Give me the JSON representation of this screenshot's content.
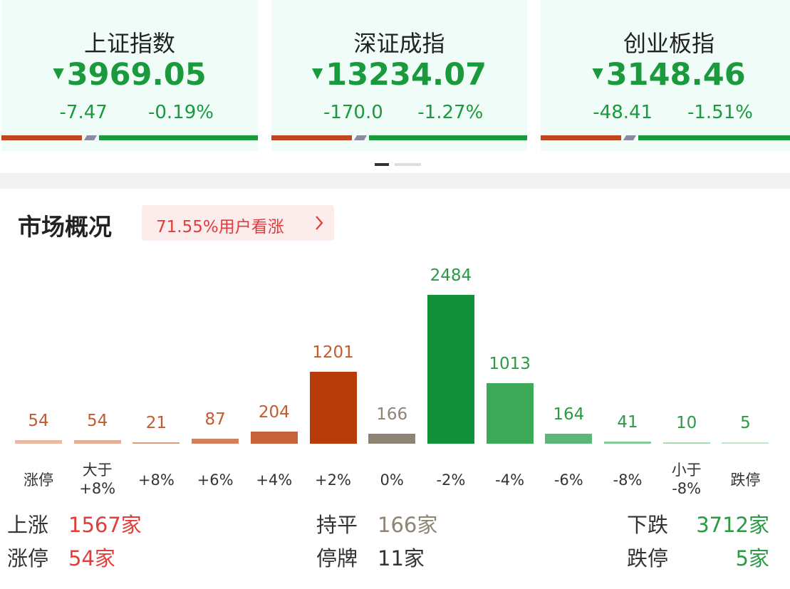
{
  "indices": [
    {
      "name": "上证指数",
      "value": "3969.05",
      "change": "-7.47",
      "pct": "-0.19%"
    },
    {
      "name": "深证成指",
      "value": "13234.07",
      "change": "-170.0",
      "pct": "-1.27%"
    },
    {
      "name": "创业板指",
      "value": "3148.46",
      "change": "-48.41",
      "pct": "-1.51%"
    }
  ],
  "overview": {
    "title": "市场概况",
    "badge": "71.55%用户看涨"
  },
  "chart_data": {
    "type": "bar",
    "categories": [
      "涨停",
      "大于\n+8%",
      "+8%",
      "+6%",
      "+4%",
      "+2%",
      "0%",
      "-2%",
      "-4%",
      "-6%",
      "-8%",
      "小于\n-8%",
      "跌停"
    ],
    "values": [
      54,
      54,
      21,
      87,
      204,
      1201,
      166,
      2484,
      1013,
      164,
      41,
      10,
      5
    ],
    "colors": [
      "#eab9a4",
      "#e4ae97",
      "#dc9a7f",
      "#d4805c",
      "#c8623a",
      "#b83c0a",
      "#8e8474",
      "#12913a",
      "#3fa95a",
      "#5cb876",
      "#85cc98",
      "#a6dbb3",
      "#c2e6ca"
    ],
    "label_colors": [
      "#c65a2e",
      "#c65a2e",
      "#c65a2e",
      "#c65a2e",
      "#c65a2e",
      "#c65a2e",
      "#8e8474",
      "#2a9a45",
      "#2a9a45",
      "#2a9a45",
      "#2a9a45",
      "#2a9a45",
      "#2a9a45"
    ]
  },
  "summary": [
    {
      "label": "上涨",
      "value": "1567家",
      "color": "#e23d3d"
    },
    {
      "label": "持平",
      "value": "166家",
      "color": "#8e8474"
    },
    {
      "label": "下跌",
      "value": "3712家",
      "color": "#2a9a45"
    },
    {
      "label": "涨停",
      "value": "54家",
      "color": "#e23d3d"
    },
    {
      "label": "停牌",
      "value": "11家",
      "color": "#333333"
    },
    {
      "label": "跌停",
      "value": "5家",
      "color": "#2a9a45"
    }
  ]
}
